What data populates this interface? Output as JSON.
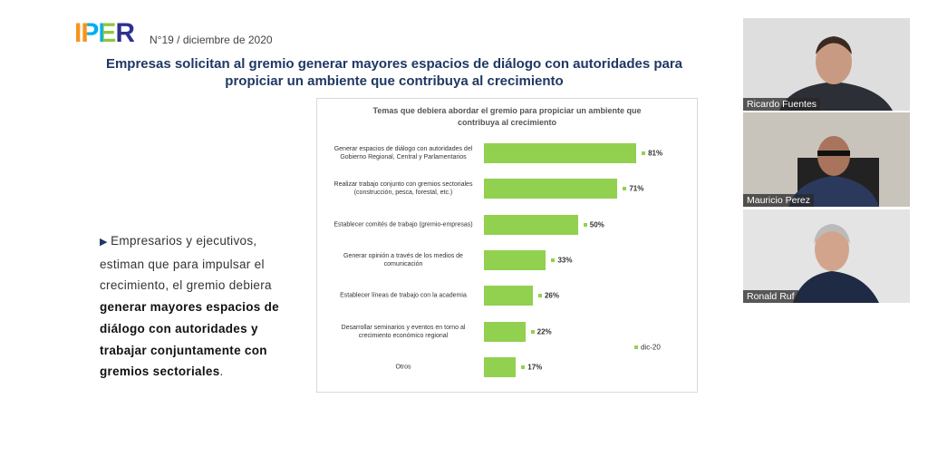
{
  "header": {
    "logo": "IPER",
    "issue": "N°19 / diciembre de 2020"
  },
  "slide": {
    "title": [
      "Empresas solicitan al gremio generar mayores espacios de diálogo con autoridades para",
      "propiciar un ambiente que contribuya al crecimiento"
    ],
    "bullet": [
      "Empresarios y ejecutivos, estiman que para impulsar el crecimiento, el gremio debiera ",
      "generar mayores espacios de diálogo con autoridades y trabajar conjuntamente con gremios sectoriales",
      "."
    ]
  },
  "chart_data": {
    "type": "bar",
    "orientation": "horizontal",
    "title": [
      "Temas que debiera abordar el gremio para propiciar un ambiente que",
      "contribuya al crecimiento"
    ],
    "categories": [
      "Generar espacios de diálogo con autoridades del Gobierno Regional, Central y Parlamentarios",
      "Realizar trabajo conjunto con gremios sectoriales (construcción, pesca, forestal, etc.)",
      "Establecer comités de trabajo (gremio-empresas)",
      "Generar opinión a través de los medios de comunicación",
      "Establecer líneas de trabajo con la academia",
      "Desarrollar seminarios y eventos en torno al crecimiento económico regional",
      "Otros"
    ],
    "series": [
      {
        "name": "dic-20",
        "color": "#92d050",
        "values": [
          81,
          71,
          50,
          33,
          26,
          22,
          17
        ],
        "value_labels": [
          "81%",
          "71%",
          "50%",
          "33%",
          "26%",
          "22%",
          "17%"
        ]
      }
    ],
    "legend": "lower right"
  },
  "participants": [
    "Ricardo Fuentes",
    "Mauricio Perez",
    "Ronald Ruf"
  ]
}
